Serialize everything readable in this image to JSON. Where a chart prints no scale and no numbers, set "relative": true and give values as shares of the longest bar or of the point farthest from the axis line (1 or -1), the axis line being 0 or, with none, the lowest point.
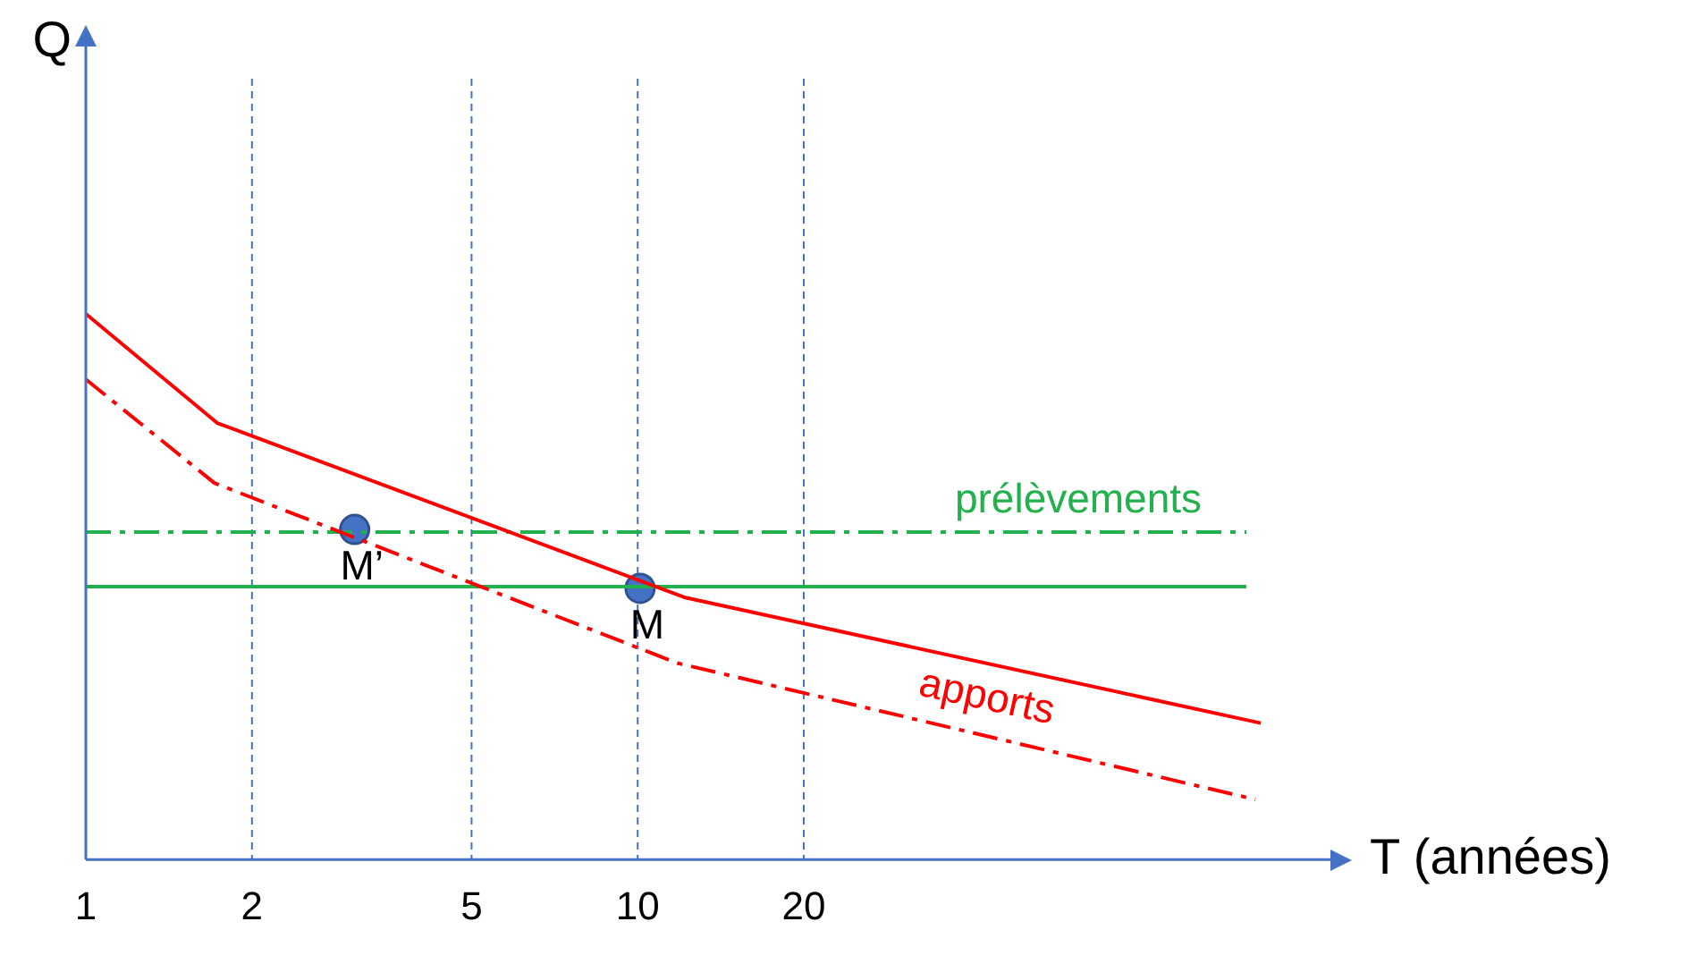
{
  "chart_data": {
    "type": "line",
    "relative": true,
    "log": "x",
    "xlabel": "T (années)",
    "ylabel": "Q",
    "xlim": [
      1,
      180
    ],
    "xticks": [
      1,
      2,
      5,
      10,
      20
    ],
    "ref_lines": [
      {
        "axis": "x",
        "value": 2,
        "color": "#4472c4",
        "line_style": "dashed"
      },
      {
        "axis": "x",
        "value": 5,
        "color": "#4472c4",
        "line_style": "dashed"
      },
      {
        "axis": "x",
        "value": 10,
        "color": "#4472c4",
        "line_style": "dashed"
      },
      {
        "axis": "x",
        "value": 20,
        "color": "#4472c4",
        "line_style": "dashed"
      }
    ],
    "legend": false,
    "marker": "none",
    "series": [
      {
        "name": "apports",
        "color": "#ff0000",
        "line_style": "solid",
        "x": [
          1,
          1.73,
          12.2,
          134.6
        ],
        "values": [
          1.0,
          0.8,
          0.48,
          0.25
        ]
      },
      {
        "color": "#ff0000",
        "line_style": "dashed",
        "x": [
          1,
          1.71,
          11.8,
          131.6
        ],
        "values": [
          0.88,
          0.69,
          0.36,
          0.11
        ]
      },
      {
        "name": "prélèvements",
        "color": "#22b14c",
        "line_style": "dashed",
        "x": [
          1,
          126.8
        ],
        "values": [
          0.6,
          0.6
        ]
      },
      {
        "color": "#22b14c",
        "line_style": "solid",
        "x": [
          1,
          126.8
        ],
        "values": [
          0.5,
          0.5
        ]
      },
      {
        "type": "scatter",
        "color": "#4472c4",
        "marker": "circle",
        "x": [
          3.07,
          10.1
        ],
        "values": [
          0.605,
          0.497
        ]
      }
    ],
    "annotations": [
      {
        "text": "M’",
        "x": 3.07,
        "y": 0.605
      },
      {
        "text": "M",
        "x": 10.1,
        "y": 0.497
      }
    ]
  }
}
